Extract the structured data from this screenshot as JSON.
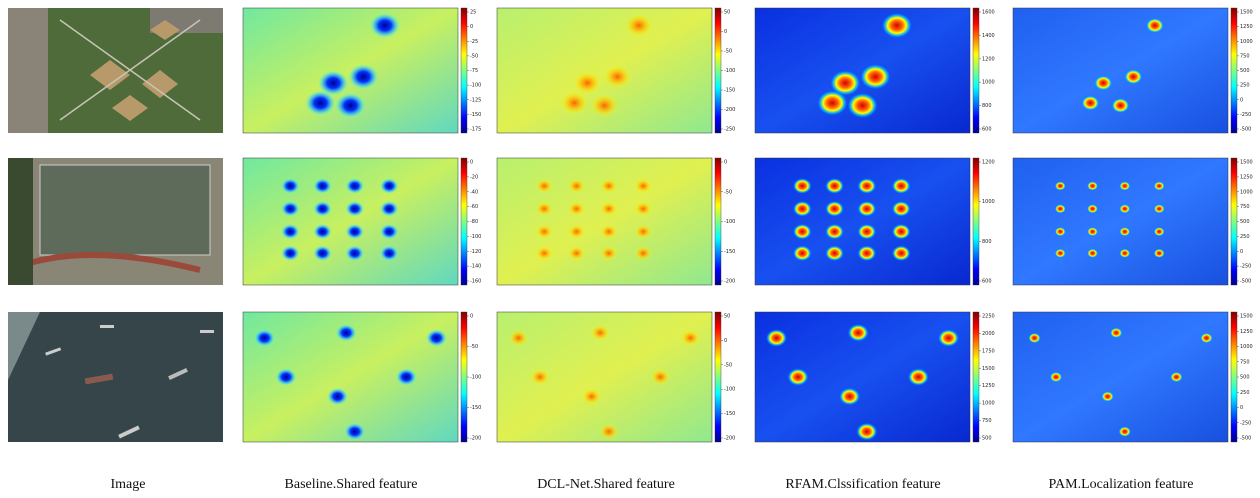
{
  "figure": {
    "columns": [
      "Image",
      "Baseline.Shared feature",
      "DCL-Net.Shared feature",
      "RFAM.Clssification feature",
      "PAM.Localization feature"
    ],
    "rows": [
      {
        "colorbars": [
          [
            25,
            0,
            -25,
            -50,
            -75,
            -100,
            -125,
            -150,
            -175
          ],
          [
            50,
            0,
            -50,
            -100,
            -150,
            -200,
            -250
          ],
          [
            1600,
            1400,
            1200,
            1000,
            800,
            600
          ],
          [
            1500,
            1250,
            1000,
            750,
            500,
            250,
            0,
            -250,
            -500
          ]
        ]
      },
      {
        "colorbars": [
          [
            0,
            -20,
            -40,
            -60,
            -80,
            -100,
            -120,
            -140,
            -160
          ],
          [
            0,
            -50,
            -100,
            -150,
            -200
          ],
          [
            1200,
            1000,
            800,
            600
          ],
          [
            1500,
            1250,
            1000,
            750,
            500,
            250,
            0,
            -250,
            -500
          ]
        ]
      },
      {
        "colorbars": [
          [
            0,
            -50,
            -100,
            -150,
            -200
          ],
          [
            50,
            0,
            -50,
            -100,
            -150,
            -200
          ],
          [
            2250,
            2000,
            1750,
            1500,
            1250,
            1000,
            750,
            500
          ],
          [
            1500,
            1250,
            1000,
            750,
            500,
            250,
            0,
            -250,
            -500
          ]
        ]
      }
    ]
  }
}
